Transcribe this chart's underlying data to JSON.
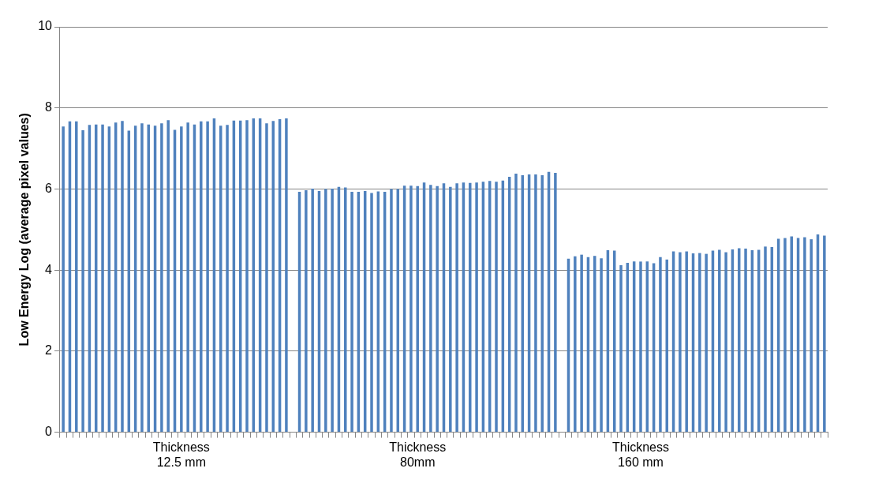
{
  "chart_data": {
    "type": "bar",
    "ylabel": "Low Energy Log (average pixel values)",
    "categories": [
      null,
      null,
      null,
      null,
      null,
      null,
      null,
      null,
      null,
      null,
      null,
      null,
      null,
      null,
      null,
      null,
      null,
      null,
      "Thickness\n12.5 mm",
      null,
      null,
      null,
      null,
      null,
      null,
      null,
      null,
      null,
      null,
      null,
      null,
      null,
      null,
      null,
      null,
      null,
      null,
      null,
      null,
      null,
      null,
      null,
      null,
      null,
      null,
      null,
      null,
      null,
      null,
      null,
      null,
      null,
      null,
      null,
      "Thickness\n80mm",
      null,
      null,
      null,
      null,
      null,
      null,
      null,
      null,
      null,
      null,
      null,
      null,
      null,
      null,
      null,
      null,
      null,
      null,
      null,
      null,
      null,
      null,
      null,
      null,
      null,
      null,
      null,
      null,
      null,
      null,
      null,
      null,
      null,
      "Thickness\n160 mm",
      null,
      null,
      null,
      null,
      null,
      null,
      null,
      null,
      null,
      null,
      null,
      null,
      null,
      null,
      null,
      null,
      null,
      null,
      null,
      null,
      null,
      null,
      null,
      null,
      null,
      null,
      null,
      null
    ],
    "values": [
      7.54,
      7.67,
      7.67,
      7.45,
      7.58,
      7.59,
      7.59,
      7.54,
      7.64,
      7.68,
      7.44,
      7.56,
      7.62,
      7.59,
      7.56,
      7.62,
      7.7,
      7.46,
      7.54,
      7.64,
      7.59,
      7.67,
      7.67,
      7.74,
      7.56,
      7.58,
      7.69,
      7.69,
      7.7,
      7.74,
      7.74,
      7.62,
      7.68,
      7.72,
      7.74,
      null,
      5.93,
      5.97,
      6.01,
      5.95,
      6.0,
      6.01,
      6.05,
      6.04,
      5.93,
      5.93,
      5.95,
      5.9,
      5.94,
      5.93,
      6.0,
      6.0,
      6.08,
      6.08,
      6.07,
      6.16,
      6.1,
      6.07,
      6.14,
      6.05,
      6.14,
      6.16,
      6.15,
      6.16,
      6.18,
      6.2,
      6.18,
      6.21,
      6.3,
      6.38,
      6.34,
      6.36,
      6.36,
      6.34,
      6.42,
      6.4,
      null,
      4.28,
      4.34,
      4.38,
      4.32,
      4.35,
      4.29,
      4.49,
      4.48,
      4.12,
      4.18,
      4.21,
      4.21,
      4.21,
      4.17,
      4.32,
      4.26,
      4.46,
      4.44,
      4.46,
      4.41,
      4.42,
      4.4,
      4.48,
      4.5,
      4.44,
      4.51,
      4.54,
      4.53,
      4.49,
      4.5,
      4.58,
      4.57,
      4.77,
      4.79,
      4.83,
      4.79,
      4.81,
      4.76,
      4.88,
      4.85
    ],
    "color": "#4f81bd",
    "ylim": [
      0,
      10
    ],
    "yticks": [
      0,
      2,
      4,
      6,
      8,
      10
    ],
    "grid": "y",
    "legend": false
  }
}
